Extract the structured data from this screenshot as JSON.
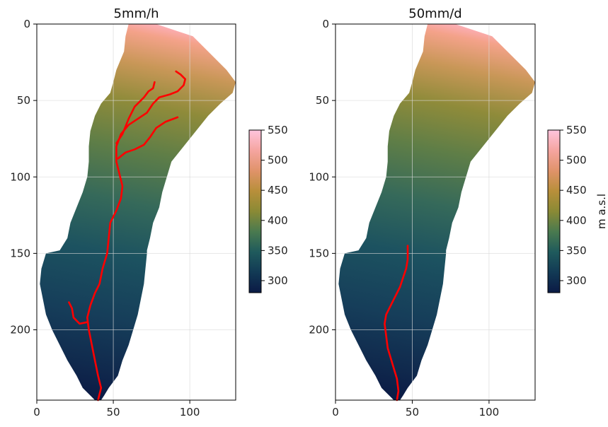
{
  "chart_data": [
    {
      "type": "heatmap",
      "title": "5mm/h",
      "xlim": [
        0,
        130
      ],
      "ylim": [
        246,
        0
      ],
      "xticks": [
        0,
        50,
        100
      ],
      "yticks": [
        0,
        50,
        100,
        150,
        200
      ],
      "grid": true,
      "colorbar": {
        "ticks": [
          300,
          350,
          400,
          450,
          500,
          550
        ],
        "range": [
          280,
          550
        ],
        "label": ""
      },
      "catchment_outline_rows": [
        [
          0,
          60,
          78
        ],
        [
          8,
          58,
          102
        ],
        [
          18,
          57,
          112
        ],
        [
          30,
          52,
          124
        ],
        [
          38,
          50,
          130
        ],
        [
          45,
          48,
          128
        ],
        [
          52,
          42,
          120
        ],
        [
          60,
          38,
          112
        ],
        [
          70,
          35,
          104
        ],
        [
          80,
          34,
          96
        ],
        [
          90,
          34,
          88
        ],
        [
          100,
          33,
          85
        ],
        [
          110,
          30,
          82
        ],
        [
          120,
          26,
          80
        ],
        [
          130,
          22,
          76
        ],
        [
          140,
          20,
          74
        ],
        [
          148,
          15,
          72
        ],
        [
          150,
          6,
          72
        ],
        [
          160,
          3,
          71
        ],
        [
          170,
          2,
          70
        ],
        [
          180,
          4,
          68
        ],
        [
          190,
          6,
          66
        ],
        [
          200,
          10,
          63
        ],
        [
          210,
          15,
          60
        ],
        [
          220,
          20,
          56
        ],
        [
          230,
          26,
          53
        ],
        [
          238,
          30,
          47
        ],
        [
          243,
          35,
          44
        ],
        [
          246,
          38,
          42
        ]
      ],
      "streams": [
        [
          [
            40,
            246
          ],
          [
            42,
            238
          ],
          [
            40,
            230
          ],
          [
            38,
            220
          ],
          [
            36,
            210
          ],
          [
            34,
            200
          ],
          [
            33,
            192
          ],
          [
            35,
            184
          ],
          [
            38,
            176
          ],
          [
            41,
            170
          ],
          [
            43,
            160
          ],
          [
            46,
            150
          ],
          [
            47,
            140
          ],
          [
            48,
            130
          ],
          [
            52,
            122
          ],
          [
            55,
            114
          ],
          [
            56,
            106
          ],
          [
            54,
            98
          ],
          [
            52,
            90
          ],
          [
            52,
            80
          ],
          [
            55,
            72
          ],
          [
            60,
            66
          ],
          [
            66,
            62
          ],
          [
            72,
            58
          ],
          [
            76,
            52
          ],
          [
            80,
            48
          ],
          [
            87,
            46
          ],
          [
            92,
            44
          ],
          [
            96,
            40
          ],
          [
            97,
            36
          ],
          [
            94,
            33
          ],
          [
            91,
            31
          ]
        ],
        [
          [
            33,
            195
          ],
          [
            28,
            196
          ],
          [
            24,
            192
          ],
          [
            23,
            186
          ],
          [
            21,
            182
          ]
        ],
        [
          [
            53,
            88
          ],
          [
            58,
            84
          ],
          [
            64,
            82
          ],
          [
            70,
            79
          ],
          [
            74,
            74
          ],
          [
            78,
            68
          ],
          [
            84,
            64
          ],
          [
            92,
            61
          ]
        ],
        [
          [
            52,
            78
          ],
          [
            56,
            72
          ],
          [
            60,
            62
          ],
          [
            64,
            54
          ],
          [
            70,
            48
          ],
          [
            73,
            44
          ],
          [
            76,
            42
          ],
          [
            77,
            38
          ]
        ]
      ]
    },
    {
      "type": "heatmap",
      "title": "50mm/d",
      "xlim": [
        0,
        130
      ],
      "ylim": [
        246,
        0
      ],
      "xticks": [
        0,
        50,
        100
      ],
      "yticks": [
        0,
        50,
        100,
        150,
        200
      ],
      "grid": true,
      "colorbar": {
        "ticks": [
          300,
          350,
          400,
          450,
          500,
          550
        ],
        "range": [
          280,
          550
        ],
        "label": "m a.s.l"
      },
      "catchment_outline_rows": [
        [
          0,
          60,
          78
        ],
        [
          8,
          58,
          102
        ],
        [
          18,
          57,
          112
        ],
        [
          30,
          52,
          124
        ],
        [
          38,
          50,
          130
        ],
        [
          45,
          48,
          128
        ],
        [
          52,
          42,
          120
        ],
        [
          60,
          38,
          112
        ],
        [
          70,
          35,
          104
        ],
        [
          80,
          34,
          96
        ],
        [
          90,
          34,
          88
        ],
        [
          100,
          33,
          85
        ],
        [
          110,
          30,
          82
        ],
        [
          120,
          26,
          80
        ],
        [
          130,
          22,
          76
        ],
        [
          140,
          20,
          74
        ],
        [
          148,
          15,
          72
        ],
        [
          150,
          6,
          72
        ],
        [
          160,
          3,
          71
        ],
        [
          170,
          2,
          70
        ],
        [
          180,
          4,
          68
        ],
        [
          190,
          6,
          66
        ],
        [
          200,
          10,
          63
        ],
        [
          210,
          15,
          60
        ],
        [
          220,
          20,
          56
        ],
        [
          230,
          26,
          53
        ],
        [
          238,
          30,
          47
        ],
        [
          243,
          35,
          44
        ],
        [
          246,
          38,
          42
        ]
      ],
      "streams": [
        [
          [
            40,
            246
          ],
          [
            41,
            240
          ],
          [
            40,
            232
          ],
          [
            37,
            222
          ],
          [
            34,
            212
          ],
          [
            33,
            204
          ],
          [
            32,
            196
          ],
          [
            33,
            190
          ],
          [
            36,
            184
          ],
          [
            39,
            178
          ],
          [
            42,
            172
          ],
          [
            44,
            166
          ],
          [
            46,
            160
          ],
          [
            47,
            154
          ],
          [
            47,
            145
          ]
        ]
      ]
    }
  ],
  "colormap": [
    "#0b1a45",
    "#123a55",
    "#1f5a5c",
    "#4a7a4f",
    "#8a8a35",
    "#b88f3a",
    "#e0936a",
    "#f5a5a0",
    "#ffc4dd"
  ]
}
